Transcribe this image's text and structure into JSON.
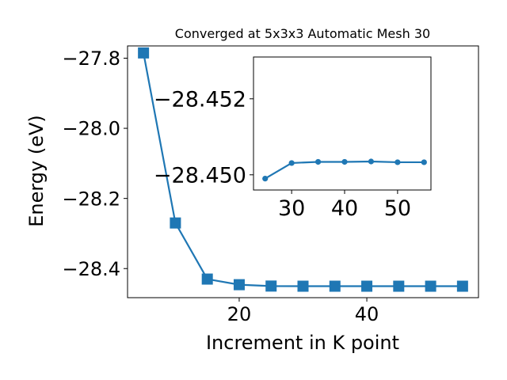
{
  "chart_data": [
    {
      "type": "line",
      "title": "Converged at 5x3x3 Automatic Mesh 30",
      "xlabel": "Increment in K point",
      "ylabel": "Energy (eV)",
      "x": [
        5,
        10,
        15,
        20,
        25,
        30,
        35,
        40,
        45,
        50,
        55
      ],
      "series": [
        {
          "values": [
            -27.785,
            -28.27,
            -28.43,
            -28.446,
            -28.4499,
            -28.4503,
            -28.4503,
            -28.4503,
            -28.4503,
            -28.4503,
            -28.4503
          ]
        }
      ],
      "xlim": [
        2.5,
        57.5
      ],
      "ylim": [
        -28.483,
        -27.765
      ],
      "xticks": [
        20,
        40
      ],
      "xtick_labels": [
        "20",
        "40"
      ],
      "yticks": [
        -27.8,
        -28.0,
        -28.2,
        -28.4
      ],
      "ytick_labels": [
        "−27.8",
        "−28.0",
        "−28.2",
        "−28.4"
      ],
      "marker": "square",
      "color": "#1f77b4",
      "grid": false
    },
    {
      "type": "line",
      "x": [
        25,
        30,
        35,
        40,
        45,
        50,
        55
      ],
      "series": [
        {
          "values": [
            -28.4499,
            -28.45031,
            -28.45034,
            -28.45034,
            -28.45035,
            -28.45033,
            -28.45033
          ]
        }
      ],
      "xlim": [
        22.8,
        56.3
      ],
      "ylim": [
        -28.4496,
        -28.4531
      ],
      "xticks": [
        30,
        40,
        50
      ],
      "xtick_labels": [
        "30",
        "40",
        "50"
      ],
      "yticks": [
        -28.452,
        -28.45
      ],
      "ytick_labels": [
        "−28.452",
        "−28.450"
      ],
      "marker": "circle",
      "color": "#1f77b4",
      "grid": false
    }
  ]
}
